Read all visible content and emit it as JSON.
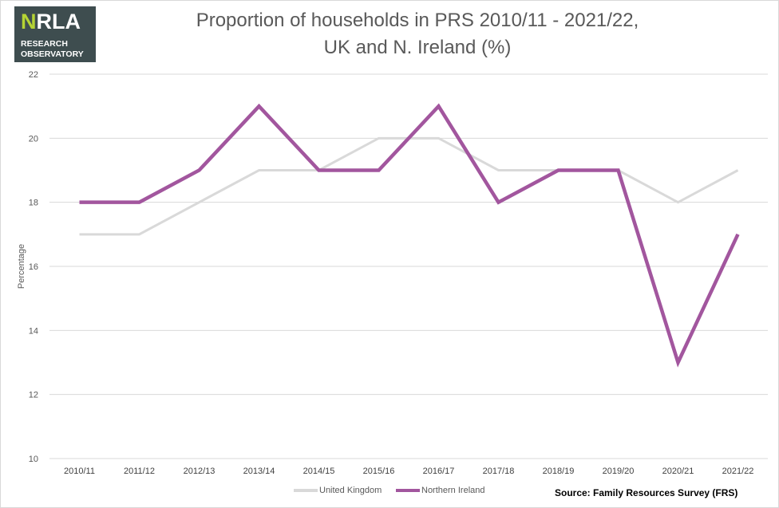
{
  "logo": {
    "brand_mark": "N",
    "brand_rest": "RLA",
    "line1": "RESEARCH",
    "line2": "OBSERVATORY"
  },
  "source": "Source: Family Resources Survey (FRS)",
  "chart_data": {
    "type": "line",
    "title_line1": "Proportion of households in PRS 2010/11 - 2021/22,",
    "title_line2": "UK and N. Ireland (%)",
    "ylabel": "Percentage",
    "xlabel": "",
    "ylim": [
      10,
      22
    ],
    "yticks": [
      10,
      12,
      14,
      16,
      18,
      20,
      22
    ],
    "grid": true,
    "legend_position": "bottom",
    "categories": [
      "2010/11",
      "2011/12",
      "2012/13",
      "2013/14",
      "2014/15",
      "2015/16",
      "2016/17",
      "2017/18",
      "2018/19",
      "2019/20",
      "2020/21",
      "2021/22"
    ],
    "series": [
      {
        "name": "United Kingdom",
        "color": "#d9d9d9",
        "values": [
          17,
          17,
          18,
          19,
          19,
          20,
          20,
          19,
          19,
          19,
          18,
          19
        ]
      },
      {
        "name": "Northern Ireland",
        "color": "#a2569e",
        "values": [
          18,
          18,
          19,
          21,
          19,
          19,
          21,
          18,
          19,
          19,
          13,
          17
        ]
      }
    ]
  }
}
